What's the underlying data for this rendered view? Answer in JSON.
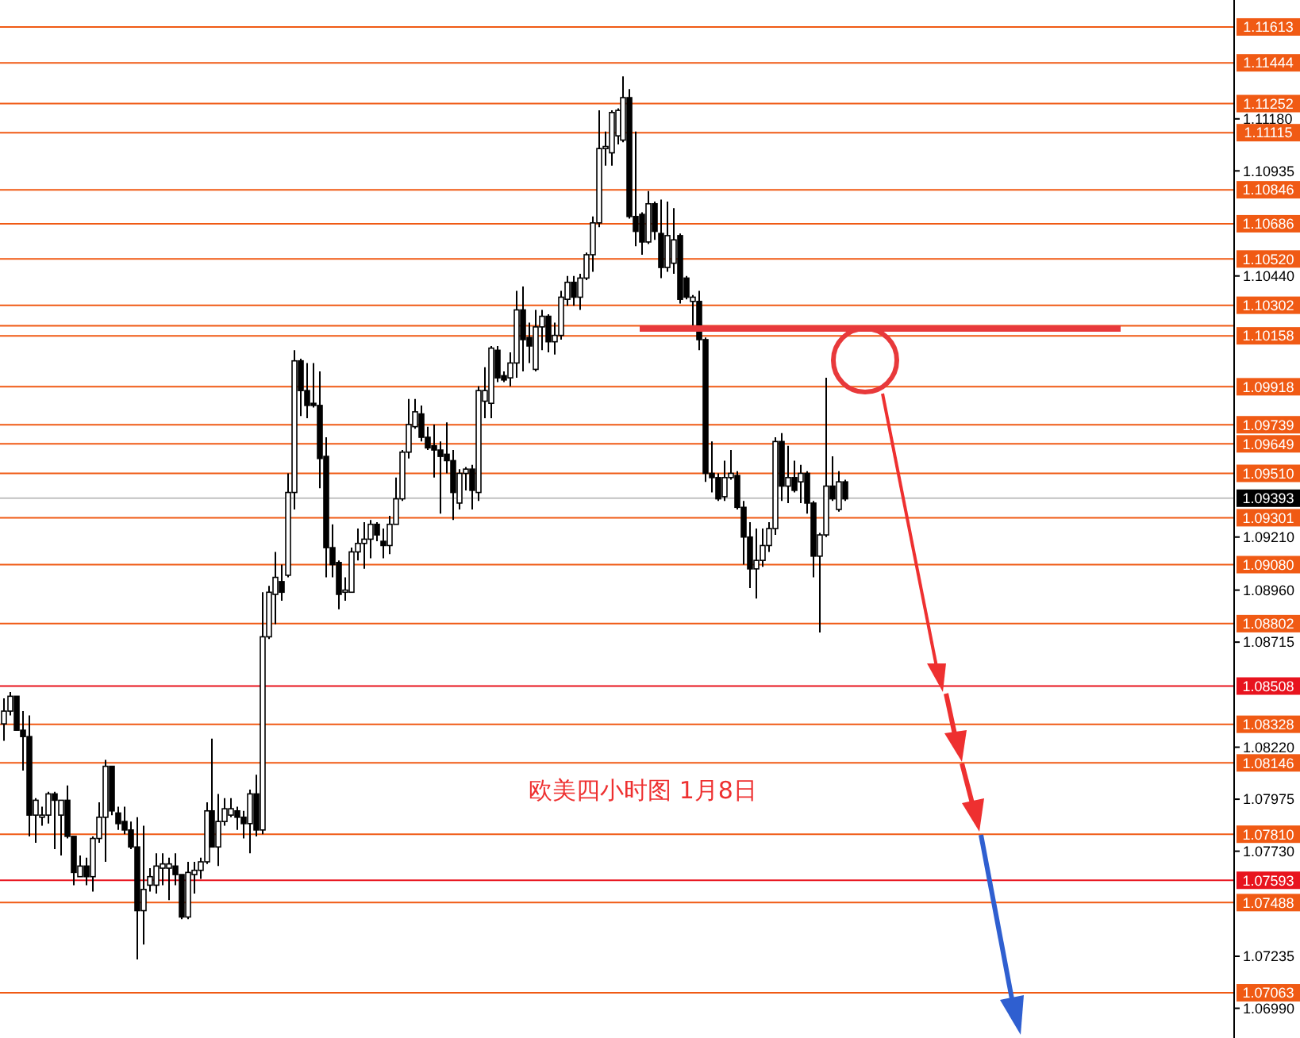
{
  "chart_data": {
    "type": "candlestick",
    "tick_labels": "y",
    "grid": false,
    "annotations": [
      "欧美四小时图  1月8日"
    ],
    "ylim": [
      1.0685,
      1.1174
    ],
    "yticks": [
      {
        "value": 1.1118,
        "label": "1.11180"
      },
      1.10935,
      {
        "value": 1.1044,
        "label": "1.10440"
      },
      {
        "value": 1.0921,
        "label": "1.09210"
      },
      {
        "value": 1.0896,
        "label": "1.08960"
      },
      1.08715,
      {
        "value": 1.0822,
        "label": "1.08220"
      },
      1.07975,
      {
        "value": 1.0773,
        "label": "1.07730"
      },
      1.07235,
      {
        "value": 1.0699,
        "label": "1.06990"
      }
    ],
    "ref_lines": [
      {
        "axis": "y",
        "value": 1.11613,
        "label": "1.11613",
        "color": "#f05a14"
      },
      {
        "axis": "y",
        "value": 1.11444,
        "label": "1.11444",
        "color": "#f05a14"
      },
      {
        "axis": "y",
        "value": 1.11252,
        "label": "1.11252",
        "color": "#f05a14"
      },
      {
        "axis": "y",
        "value": 1.11115,
        "label": "1.11115",
        "color": "#f05a14"
      },
      {
        "axis": "y",
        "value": 1.10846,
        "label": "1.10846",
        "color": "#f05a14"
      },
      {
        "axis": "y",
        "value": 1.10686,
        "label": "1.10686",
        "color": "#f05a14"
      },
      {
        "axis": "y",
        "value": 1.1052,
        "label": "1.10520",
        "color": "#f05a14"
      },
      {
        "axis": "y",
        "value": 1.10302,
        "label": "1.10302",
        "color": "#f05a14"
      },
      {
        "axis": "y",
        "value": 1.10205,
        "label": null,
        "color": "#f05a14"
      },
      {
        "axis": "y",
        "value": 1.10158,
        "label": "1.10158",
        "color": "#f05a14"
      },
      {
        "axis": "y",
        "value": 1.09918,
        "label": "1.09918",
        "color": "#f05a14"
      },
      {
        "axis": "y",
        "value": 1.09739,
        "label": "1.09739",
        "color": "#f05a14"
      },
      {
        "axis": "y",
        "value": 1.09649,
        "label": "1.09649",
        "color": "#f05a14"
      },
      {
        "axis": "y",
        "value": 1.0951,
        "label": "1.09510",
        "color": "#f05a14"
      },
      {
        "axis": "y",
        "value": 1.09393,
        "label": "1.09393",
        "color": "#c0c0c0"
      },
      {
        "axis": "y",
        "value": 1.09301,
        "label": "1.09301",
        "color": "#f05a14"
      },
      {
        "axis": "y",
        "value": 1.0908,
        "label": "1.09080",
        "color": "#f05a14"
      },
      {
        "axis": "y",
        "value": 1.08802,
        "label": "1.08802",
        "color": "#f05a14"
      },
      {
        "axis": "y",
        "value": 1.08508,
        "label": "1.08508",
        "color": "#e8141e"
      },
      {
        "axis": "y",
        "value": 1.08328,
        "label": "1.08328",
        "color": "#f05a14"
      },
      {
        "axis": "y",
        "value": 1.08146,
        "label": "1.08146",
        "color": "#f05a14"
      },
      {
        "axis": "y",
        "value": 1.0781,
        "label": "1.07810",
        "color": "#f05a14"
      },
      {
        "axis": "y",
        "value": 1.07593,
        "label": "1.07593",
        "color": "#e8141e"
      },
      {
        "axis": "y",
        "value": 1.07488,
        "label": "1.07488",
        "color": "#f05a14"
      },
      {
        "axis": "y",
        "value": 1.07063,
        "label": "1.07063",
        "color": "#f05a14"
      }
    ],
    "categories": [
      null,
      null,
      null,
      null,
      null,
      null,
      null,
      null,
      null,
      null,
      null,
      null,
      null,
      null,
      null,
      null,
      null,
      null,
      null,
      null,
      null,
      null,
      null,
      null,
      null,
      null,
      null,
      null,
      null,
      null,
      null,
      null,
      null,
      null,
      null,
      null,
      null,
      null,
      null,
      null,
      null,
      null,
      null,
      null,
      null,
      null,
      null,
      null,
      null,
      null,
      null,
      null,
      null,
      null,
      null,
      null,
      null,
      null,
      null,
      null,
      null,
      null,
      null,
      null,
      null,
      null,
      null,
      null,
      null,
      null,
      null,
      null,
      null,
      null,
      null,
      null,
      null,
      null,
      null,
      null,
      null,
      null,
      null,
      null,
      null,
      null,
      null,
      null,
      null,
      null,
      null,
      null,
      null,
      null,
      null,
      null,
      null,
      null,
      null,
      null,
      null,
      null,
      null,
      null,
      null,
      null,
      null,
      null,
      null,
      null,
      null,
      null,
      null,
      null,
      null,
      null,
      null,
      null,
      null,
      null,
      null,
      null,
      null,
      null,
      null,
      null,
      null,
      null,
      null,
      null,
      null,
      null,
      null,
      null,
      null,
      null,
      null,
      null,
      null,
      null,
      null,
      null,
      null,
      null,
      null,
      null,
      null,
      null,
      null,
      null,
      null,
      null,
      null,
      null,
      null,
      null,
      null,
      null,
      null,
      null,
      null,
      null,
      null,
      null,
      null,
      null,
      null,
      null,
      null,
      null,
      null,
      null,
      null,
      null,
      null,
      null,
      null,
      null,
      null,
      null,
      null,
      null,
      null,
      null,
      null,
      null,
      null,
      null,
      null,
      null,
      null,
      null,
      null,
      null,
      null
    ],
    "ohlc": [
      [
        1.0833,
        1.0845,
        1.0825,
        1.0839
      ],
      [
        1.0839,
        1.0848,
        1.0837,
        1.0846
      ],
      [
        1.0846,
        1.0846,
        1.083,
        1.083
      ],
      [
        1.083,
        1.0839,
        1.0811,
        1.0827
      ],
      [
        1.0827,
        1.0837,
        1.078,
        1.079
      ],
      [
        1.079,
        1.0798,
        1.0777,
        1.0797
      ],
      [
        1.0789,
        1.0794,
        1.0785,
        1.079
      ],
      [
        1.079,
        1.0801,
        1.0786,
        1.08
      ],
      [
        1.08,
        1.0801,
        1.0774,
        1.0797
      ],
      [
        1.079,
        1.0797,
        1.0771,
        1.0797
      ],
      [
        1.0797,
        1.0804,
        1.0779,
        1.078
      ],
      [
        1.078,
        1.078,
        1.0757,
        1.0763
      ],
      [
        1.0761,
        1.0771,
        1.0761,
        1.0766
      ],
      [
        1.0766,
        1.077,
        1.0757,
        1.0761
      ],
      [
        1.0761,
        1.078,
        1.0754,
        1.0779
      ],
      [
        1.0779,
        1.0796,
        1.0777,
        1.0789
      ],
      [
        1.0789,
        1.0816,
        1.0768,
        1.0813
      ],
      [
        1.0813,
        1.0813,
        1.079,
        1.0792
      ],
      [
        1.0791,
        1.0794,
        1.0783,
        1.0786
      ],
      [
        1.0787,
        1.0794,
        1.0781,
        1.0783
      ],
      [
        1.0783,
        1.0787,
        1.0774,
        1.0775
      ],
      [
        1.0775,
        1.0789,
        1.0722,
        1.0745
      ],
      [
        1.0745,
        1.0785,
        1.0729,
        1.0755
      ],
      [
        1.0757,
        1.0765,
        1.0754,
        1.0761
      ],
      [
        1.0757,
        1.0772,
        1.0753,
        1.0766
      ],
      [
        1.0765,
        1.0772,
        1.0757,
        1.0767
      ],
      [
        1.0765,
        1.077,
        1.075,
        1.0767
      ],
      [
        1.0766,
        1.0772,
        1.0757,
        1.0762
      ],
      [
        1.0762,
        1.0762,
        1.0741,
        1.0742
      ],
      [
        1.0742,
        1.0768,
        1.0741,
        1.0763
      ],
      [
        1.0762,
        1.0768,
        1.0753,
        1.0764
      ],
      [
        1.0764,
        1.077,
        1.076,
        1.0768
      ],
      [
        1.0768,
        1.0796,
        1.0767,
        1.0792
      ],
      [
        1.0792,
        1.0826,
        1.0775,
        1.0775
      ],
      [
        1.0775,
        1.08,
        1.0766,
        1.0787
      ],
      [
        1.0787,
        1.0798,
        1.0785,
        1.0793
      ],
      [
        1.079,
        1.0798,
        1.0789,
        1.0793
      ],
      [
        1.0792,
        1.0794,
        1.0783,
        1.0789
      ],
      [
        1.0789,
        1.0792,
        1.0779,
        1.0786
      ],
      [
        1.0786,
        1.0802,
        1.0772,
        1.08
      ],
      [
        1.08,
        1.0809,
        1.078,
        1.0783
      ],
      [
        1.0783,
        1.0895,
        1.0781,
        1.0874
      ],
      [
        1.0874,
        1.0898,
        1.0873,
        1.0895
      ],
      [
        1.0894,
        1.0914,
        1.088,
        1.0902
      ],
      [
        1.09,
        1.0908,
        1.0891,
        1.0895
      ],
      [
        1.0903,
        1.0951,
        1.0902,
        1.0942
      ],
      [
        1.0942,
        1.1009,
        1.0934,
        1.1004
      ],
      [
        1.1004,
        1.1005,
        1.0978,
        1.099
      ],
      [
        1.099,
        1.1003,
        1.0977,
        1.0983
      ],
      [
        1.0984,
        1.1003,
        1.0982,
        1.0983
      ],
      [
        1.0983,
        1.0999,
        1.0944,
        1.0958
      ],
      [
        1.0959,
        1.0968,
        1.0902,
        1.0916
      ],
      [
        1.0916,
        1.0927,
        1.0902,
        1.0908
      ],
      [
        1.0909,
        1.091,
        1.0887,
        1.0894
      ],
      [
        1.0895,
        1.0902,
        1.0891,
        1.0896
      ],
      [
        1.0895,
        1.0916,
        1.0895,
        1.0914
      ],
      [
        1.0914,
        1.0925,
        1.091,
        1.0918
      ],
      [
        1.0918,
        1.0928,
        1.0906,
        1.092
      ],
      [
        1.092,
        1.0929,
        1.0911,
        1.0927
      ],
      [
        1.0927,
        1.0928,
        1.0919,
        1.0922
      ],
      [
        1.0919,
        1.0925,
        1.0911,
        1.0917
      ],
      [
        1.0917,
        1.0931,
        1.0913,
        1.0927
      ],
      [
        1.0927,
        1.0949,
        1.0927,
        1.0939
      ],
      [
        1.0939,
        1.0962,
        1.0938,
        1.0961
      ],
      [
        1.0961,
        1.0986,
        1.0958,
        1.0974
      ],
      [
        1.0973,
        1.0986,
        1.0972,
        1.098
      ],
      [
        1.0979,
        1.0983,
        1.0966,
        1.0968
      ],
      [
        1.0968,
        1.0973,
        1.0962,
        1.0963
      ],
      [
        1.0964,
        1.0974,
        1.0949,
        1.0962
      ],
      [
        1.0962,
        1.0966,
        1.0932,
        1.0959
      ],
      [
        1.096,
        1.0975,
        1.0951,
        1.0957
      ],
      [
        1.0957,
        1.0962,
        1.0929,
        1.0942
      ],
      [
        1.0937,
        1.0953,
        1.0934,
        1.0951
      ],
      [
        1.0951,
        1.0954,
        1.0943,
        1.0953
      ],
      [
        1.0953,
        1.0955,
        1.0934,
        1.0943
      ],
      [
        1.0942,
        1.0992,
        1.0938,
        1.099
      ],
      [
        1.0985,
        1.1001,
        1.0977,
        1.099
      ],
      [
        1.0984,
        1.1011,
        1.0977,
        1.101
      ],
      [
        1.1009,
        1.1011,
        1.0994,
        1.0996
      ],
      [
        1.0997,
        1.0999,
        1.0994,
        1.0995
      ],
      [
        1.0996,
        1.1008,
        1.0992,
        1.1003
      ],
      [
        1.1003,
        1.1037,
        1.0996,
        1.1028
      ],
      [
        1.1028,
        1.1039,
        1.0999,
        1.1014
      ],
      [
        1.1015,
        1.1022,
        1.1003,
        1.1011
      ],
      [
        1.1,
        1.1028,
        1.0999,
        1.102
      ],
      [
        1.102,
        1.1028,
        1.1009,
        1.1025
      ],
      [
        1.1025,
        1.1026,
        1.1008,
        1.1013
      ],
      [
        1.1013,
        1.1022,
        1.1007,
        1.1016
      ],
      [
        1.1016,
        1.1037,
        1.1014,
        1.1034
      ],
      [
        1.1033,
        1.1044,
        1.103,
        1.1041
      ],
      [
        1.1041,
        1.1044,
        1.103,
        1.1034
      ],
      [
        1.1034,
        1.1045,
        1.1028,
        1.1043
      ],
      [
        1.1043,
        1.1055,
        1.1042,
        1.1054
      ],
      [
        1.1054,
        1.1072,
        1.1046,
        1.1069
      ],
      [
        1.1069,
        1.1122,
        1.1067,
        1.1104
      ],
      [
        1.1104,
        1.1112,
        1.1096,
        1.1105
      ],
      [
        1.1102,
        1.1122,
        1.1096,
        1.1121
      ],
      [
        1.111,
        1.1123,
        1.1106,
        1.1122
      ],
      [
        1.1108,
        1.1138,
        1.1107,
        1.1128
      ],
      [
        1.1128,
        1.1132,
        1.1071,
        1.1072
      ],
      [
        1.1072,
        1.1112,
        1.1058,
        1.1065
      ],
      [
        1.1073,
        1.1074,
        1.1054,
        1.106
      ],
      [
        1.106,
        1.1084,
        1.1059,
        1.1078
      ],
      [
        1.1078,
        1.1079,
        1.1061,
        1.1065
      ],
      [
        1.1064,
        1.108,
        1.1043,
        1.1048
      ],
      [
        1.1048,
        1.1079,
        1.1046,
        1.1063
      ],
      [
        1.105,
        1.1076,
        1.1045,
        1.1061
      ],
      [
        1.1063,
        1.1064,
        1.1031,
        1.1033
      ],
      [
        1.1043,
        1.1044,
        1.1033,
        1.1034
      ],
      [
        1.1032,
        1.1035,
        1.1019,
        1.1034
      ],
      [
        1.1032,
        1.1037,
        1.1009,
        1.1014
      ],
      [
        1.1014,
        1.1015,
        1.0947,
        1.0951
      ],
      [
        1.0951,
        1.0966,
        1.0942,
        1.0949
      ],
      [
        1.0949,
        1.0951,
        1.0938,
        1.0939
      ],
      [
        1.094,
        1.0957,
        1.0938,
        1.0949
      ],
      [
        1.0949,
        1.0962,
        1.0948,
        1.0951
      ],
      [
        1.095,
        1.0952,
        1.0934,
        1.0935
      ],
      [
        1.0935,
        1.0938,
        1.0908,
        1.0921
      ],
      [
        1.0921,
        1.0928,
        1.0897,
        1.0906
      ],
      [
        1.0906,
        1.0925,
        1.0892,
        1.091
      ],
      [
        1.091,
        1.0925,
        1.0907,
        1.0917
      ],
      [
        1.0917,
        1.0928,
        1.0914,
        1.0925
      ],
      [
        1.0925,
        1.0968,
        1.0922,
        1.0966
      ],
      [
        1.0966,
        1.097,
        1.0938,
        1.0945
      ],
      [
        1.0945,
        1.0964,
        1.0937,
        1.0949
      ],
      [
        1.0949,
        1.0957,
        1.0942,
        1.0943
      ],
      [
        1.0947,
        1.0955,
        1.0937,
        1.0951
      ],
      [
        1.0951,
        1.0952,
        1.0932,
        1.0937
      ],
      [
        1.0937,
        1.0938,
        1.0902,
        1.0912
      ],
      [
        1.0912,
        1.0923,
        1.0876,
        1.0922
      ],
      [
        1.0922,
        1.0996,
        1.0921,
        1.0945
      ],
      [
        1.0945,
        1.0959,
        1.0938,
        1.0939
      ],
      [
        1.0934,
        1.0952,
        1.0933,
        1.0947
      ],
      [
        1.0947,
        1.0948,
        1.0938,
        1.0939
      ],
      null,
      null,
      null,
      null,
      null,
      null,
      null,
      null,
      null,
      null,
      null,
      null,
      null,
      null,
      null,
      null,
      null,
      null,
      null,
      null,
      null,
      null,
      null,
      null,
      null,
      null,
      null,
      null,
      null,
      null,
      null,
      null,
      null,
      null,
      null,
      null,
      null,
      null,
      null,
      null,
      null,
      null,
      null,
      null,
      null,
      null,
      null,
      null,
      null,
      null,
      null,
      null,
      null,
      null,
      null,
      null,
      null,
      null,
      null,
      null,
      null
    ]
  }
}
